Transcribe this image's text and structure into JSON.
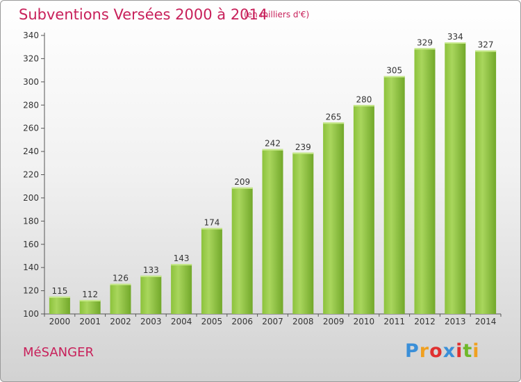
{
  "header": {
    "title": "Subventions Versées 2000 à 2014",
    "unit": "(en milliers d'€)"
  },
  "footer": {
    "commune": "MéSANGER",
    "logo": "Proxiti"
  },
  "colors": {
    "title": "#c8205a",
    "bar_light": "#a8d65a",
    "bar_dark": "#6ea325",
    "axis": "#555555"
  },
  "chart_data": {
    "type": "bar",
    "title": "Subventions Versées 2000 à 2014",
    "subtitle": "(en milliers d'€)",
    "categories": [
      "2000",
      "2001",
      "2002",
      "2003",
      "2004",
      "2005",
      "2006",
      "2007",
      "2008",
      "2009",
      "2010",
      "2011",
      "2012",
      "2013",
      "2014"
    ],
    "values": [
      115,
      112,
      126,
      133,
      143,
      174,
      209,
      242,
      239,
      265,
      280,
      305,
      329,
      334,
      327
    ],
    "ylim": [
      100,
      340
    ],
    "yticks": [
      100,
      120,
      140,
      160,
      180,
      200,
      220,
      240,
      260,
      280,
      300,
      320,
      340
    ],
    "grid": false,
    "legend": "none"
  }
}
